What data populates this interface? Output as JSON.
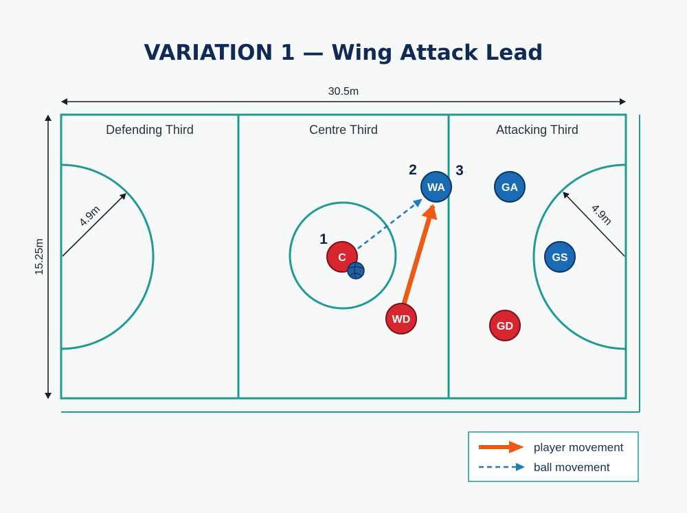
{
  "title": "VARIATION 1 — Wing Attack Lead",
  "dimensions": {
    "length": "30.5m",
    "width": "15.25m",
    "circle_radius_left": "4.9m",
    "circle_radius_right": "4.9m"
  },
  "zones": [
    {
      "label": "Defending Third"
    },
    {
      "label": "Centre Third"
    },
    {
      "label": "Attacking Third"
    }
  ],
  "players": [
    {
      "code": "C",
      "team": "red"
    },
    {
      "code": "WD",
      "team": "red"
    },
    {
      "code": "GD",
      "team": "red"
    },
    {
      "code": "WA",
      "team": "blue"
    },
    {
      "code": "GA",
      "team": "blue"
    },
    {
      "code": "GS",
      "team": "blue"
    }
  ],
  "steps": [
    "1",
    "2",
    "3"
  ],
  "legend": {
    "player_movement": "player movement",
    "ball_movement": "ball movement"
  },
  "colors": {
    "court_lines": "#1e9a94",
    "red_team": "#d7262f",
    "blue_team": "#1a6bb3",
    "player_arrow": "#ec5a14",
    "ball_arrow": "#1f7cbf",
    "title": "#0f2a55"
  }
}
